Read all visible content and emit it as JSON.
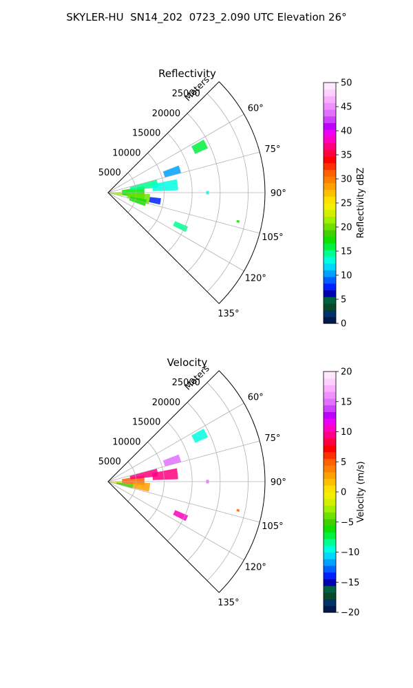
{
  "suptitle": "SKYLER-HU  SN14_202  0723_2.090 UTC Elevation 26°",
  "chart_data": [
    {
      "type": "polar_sector_ppi",
      "title": "Reflectivity",
      "range_label": "Meters",
      "range_ticks": [
        5000,
        10000,
        15000,
        20000,
        25000
      ],
      "range_tick_labels": [
        "5000",
        "10000",
        "15000",
        "20000",
        "25000"
      ],
      "range_max": 28000,
      "angle_range_deg": [
        45,
        135
      ],
      "angle_ticks_deg": [
        60,
        75,
        90,
        105,
        120,
        135
      ],
      "angle_tick_labels": [
        "60°",
        "75°",
        "90°",
        "105°",
        "120°",
        "135°"
      ],
      "grid": true,
      "colorbar": {
        "label": "Reflectivity dBZ",
        "vmin": 0,
        "vmax": 50,
        "ticks": [
          0,
          5,
          10,
          15,
          20,
          25,
          30,
          35,
          40,
          45,
          50
        ],
        "tick_labels": [
          "0",
          "5",
          "10",
          "15",
          "20",
          "25",
          "30",
          "35",
          "40",
          "45",
          "50"
        ],
        "colors": [
          "#001a4d",
          "#003366",
          "#0a4a2a",
          "#006040",
          "#0000b0",
          "#0020ff",
          "#0060ff",
          "#00a0ff",
          "#00d8ff",
          "#00ffe0",
          "#00ff90",
          "#00f040",
          "#10e000",
          "#40d000",
          "#70e000",
          "#a0f000",
          "#d0f000",
          "#f0f000",
          "#ffe000",
          "#ffc000",
          "#ffa000",
          "#ff8000",
          "#ff6000",
          "#ff3000",
          "#ff0000",
          "#ff0040",
          "#ff0080",
          "#ff00c0",
          "#f000f0",
          "#c000ff",
          "#d040ff",
          "#e070ff",
          "#f090ff",
          "#f8b0ff",
          "#fcd0ff",
          "#ffe8ff"
        ]
      },
      "echoes": [
        {
          "az_deg": [
            88,
            103
          ],
          "range_m": [
            0,
            2500
          ],
          "value": 22
        },
        {
          "az_deg": [
            80,
            100
          ],
          "range_m": [
            2500,
            6500
          ],
          "value": 18
        },
        {
          "az_deg": [
            75,
            84
          ],
          "range_m": [
            4000,
            9000
          ],
          "value": 15
        },
        {
          "az_deg": [
            92,
            106
          ],
          "range_m": [
            3500,
            7500
          ],
          "value": 20
        },
        {
          "az_deg": [
            100,
            110
          ],
          "range_m": [
            4000,
            7000
          ],
          "value": 17
        },
        {
          "az_deg": [
            96,
            103
          ],
          "range_m": [
            7500,
            9500
          ],
          "value": 8
        },
        {
          "az_deg": [
            79,
            88
          ],
          "range_m": [
            8000,
            12500
          ],
          "value": 13
        },
        {
          "az_deg": [
            69,
            75
          ],
          "range_m": [
            10500,
            13500
          ],
          "value": 11
        },
        {
          "az_deg": [
            61,
            66
          ],
          "range_m": [
            17000,
            19500
          ],
          "value": 16
        },
        {
          "az_deg": [
            113,
            117
          ],
          "range_m": [
            13000,
            15500
          ],
          "value": 15
        },
        {
          "az_deg": [
            89,
            91
          ],
          "range_m": [
            17500,
            18000
          ],
          "value": 13
        },
        {
          "az_deg": [
            102,
            103
          ],
          "range_m": [
            23500,
            24000
          ],
          "value": 17
        }
      ]
    },
    {
      "type": "polar_sector_ppi",
      "title": "Velocity",
      "range_label": "Meters",
      "range_ticks": [
        5000,
        10000,
        15000,
        20000,
        25000
      ],
      "range_tick_labels": [
        "5000",
        "10000",
        "15000",
        "20000",
        "25000"
      ],
      "range_max": 28000,
      "angle_range_deg": [
        45,
        135
      ],
      "angle_ticks_deg": [
        60,
        75,
        90,
        105,
        120,
        135
      ],
      "angle_tick_labels": [
        "60°",
        "75°",
        "90°",
        "105°",
        "120°",
        "135°"
      ],
      "grid": true,
      "colorbar": {
        "label": "Velocity (m/s)",
        "vmin": -20,
        "vmax": 20,
        "ticks": [
          -20,
          -15,
          -10,
          -5,
          0,
          5,
          10,
          15,
          20
        ],
        "tick_labels": [
          "−20",
          "−15",
          "−10",
          "−5",
          "0",
          "5",
          "10",
          "15",
          "20"
        ],
        "colors": [
          "#001a4d",
          "#003366",
          "#0a4a2a",
          "#006040",
          "#0000b0",
          "#0020ff",
          "#0060ff",
          "#00a0ff",
          "#00d8ff",
          "#00ffe0",
          "#00ff90",
          "#00f040",
          "#10e000",
          "#40d000",
          "#70e000",
          "#a0f000",
          "#d0f000",
          "#f0f000",
          "#ffe000",
          "#ffc000",
          "#ffa000",
          "#ff8000",
          "#ff6000",
          "#ff3000",
          "#ff0000",
          "#ff0040",
          "#ff0080",
          "#ff00c0",
          "#f000f0",
          "#c000ff",
          "#d040ff",
          "#e070ff",
          "#f090ff",
          "#f8b0ff",
          "#fcd0ff",
          "#ffe8ff"
        ]
      },
      "echoes": [
        {
          "az_deg": [
            88,
            103
          ],
          "range_m": [
            0,
            2500
          ],
          "value": 1
        },
        {
          "az_deg": [
            96,
            106
          ],
          "range_m": [
            1500,
            4500
          ],
          "value": -5
        },
        {
          "az_deg": [
            80,
            96
          ],
          "range_m": [
            2500,
            6500
          ],
          "value": 5
        },
        {
          "az_deg": [
            92,
            104
          ],
          "range_m": [
            4500,
            7500
          ],
          "value": 3
        },
        {
          "az_deg": [
            75,
            84
          ],
          "range_m": [
            4000,
            9000
          ],
          "value": 9
        },
        {
          "az_deg": [
            79,
            88
          ],
          "range_m": [
            8000,
            12500
          ],
          "value": 9
        },
        {
          "az_deg": [
            69,
            75
          ],
          "range_m": [
            10500,
            13500
          ],
          "value": 15
        },
        {
          "az_deg": [
            61,
            66
          ],
          "range_m": [
            17000,
            19500
          ],
          "value": -9
        },
        {
          "az_deg": [
            113,
            117
          ],
          "range_m": [
            13000,
            15500
          ],
          "value": 10
        },
        {
          "az_deg": [
            89,
            91
          ],
          "range_m": [
            17500,
            18000
          ],
          "value": 15
        },
        {
          "az_deg": [
            102,
            103
          ],
          "range_m": [
            23500,
            24000
          ],
          "value": 5
        }
      ]
    }
  ]
}
